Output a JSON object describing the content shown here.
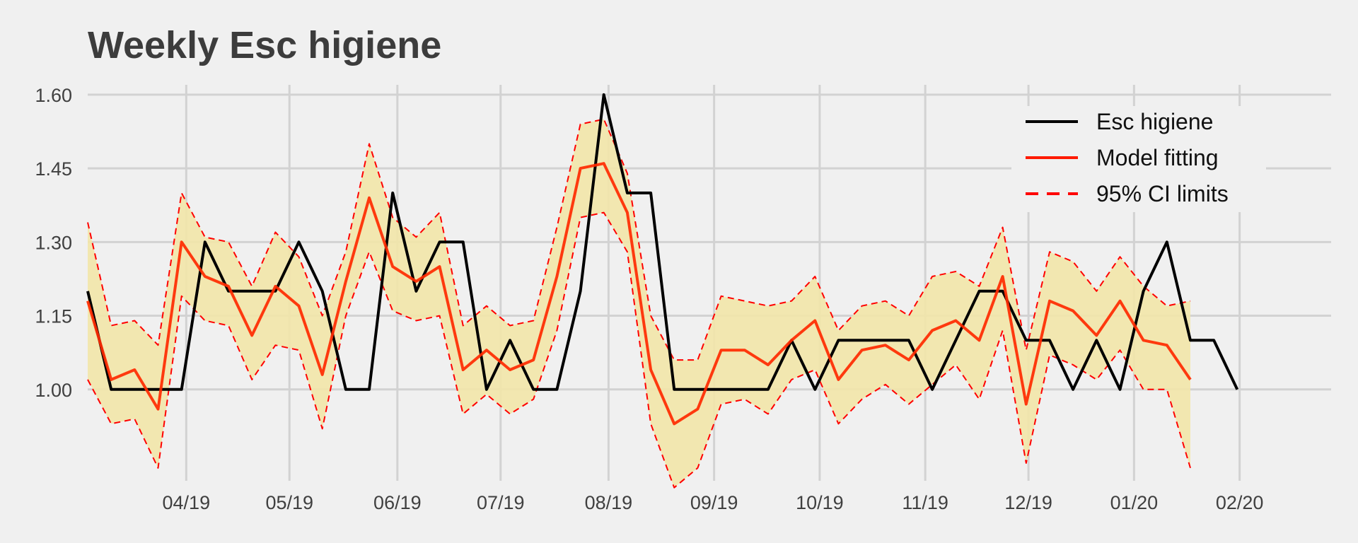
{
  "chart_data": {
    "type": "line",
    "title": "Weekly Esc higiene",
    "xlabel": "",
    "ylabel": "",
    "ylim": [
      0.85,
      1.62
    ],
    "yticks": [
      1.0,
      1.15,
      1.3,
      1.45,
      1.6
    ],
    "ytick_labels": [
      "1.00",
      "1.15",
      "1.30",
      "1.45",
      "1.60"
    ],
    "x_tick_labels": [
      "04/19",
      "05/19",
      "06/19",
      "07/19",
      "08/19",
      "09/19",
      "10/19",
      "11/19",
      "12/19",
      "01/20",
      "02/20"
    ],
    "x_tick_weeks": [
      4.2,
      8.6,
      13.2,
      17.6,
      22.2,
      26.7,
      31.2,
      35.7,
      40.1,
      44.6,
      49.1
    ],
    "x_count": 54,
    "legend": {
      "position": "top-right",
      "entries": [
        "Esc higiene",
        "Model fitting",
        "95% CI limits"
      ]
    },
    "colors": {
      "observed": "#000000",
      "fit": "#ff2a00",
      "ci": "#ff0000",
      "band": "#f2e6a8",
      "grid": "#d2d2d2",
      "background": "#f0f0f0"
    },
    "series": [
      {
        "name": "Esc higiene",
        "style": "solid",
        "values": [
          1.2,
          1.0,
          1.0,
          1.0,
          1.0,
          1.3,
          1.2,
          1.2,
          1.2,
          1.3,
          1.2,
          1.0,
          1.0,
          1.4,
          1.2,
          1.3,
          1.3,
          1.0,
          1.1,
          1.0,
          1.0,
          1.2,
          1.6,
          1.4,
          1.4,
          1.0,
          1.0,
          1.0,
          1.0,
          1.0,
          1.1,
          1.0,
          1.1,
          1.1,
          1.1,
          1.1,
          1.0,
          1.1,
          1.2,
          1.2,
          1.1,
          1.1,
          1.0,
          1.1,
          1.0,
          1.2,
          1.3,
          1.1,
          1.1,
          1.0
        ]
      },
      {
        "name": "Model fitting",
        "style": "solid",
        "values": [
          1.18,
          1.02,
          1.04,
          0.96,
          1.3,
          1.23,
          1.21,
          1.11,
          1.21,
          1.17,
          1.03,
          1.22,
          1.39,
          1.25,
          1.22,
          1.25,
          1.04,
          1.08,
          1.04,
          1.06,
          1.23,
          1.45,
          1.46,
          1.36,
          1.04,
          0.93,
          0.96,
          1.08,
          1.08,
          1.05,
          1.1,
          1.14,
          1.02,
          1.08,
          1.09,
          1.06,
          1.12,
          1.14,
          1.1,
          1.23,
          0.97,
          1.18,
          1.16,
          1.11,
          1.18,
          1.1,
          1.09,
          1.02
        ]
      },
      {
        "name": "95% CI limits",
        "style": "dashed",
        "upper": [
          1.34,
          1.13,
          1.14,
          1.09,
          1.4,
          1.31,
          1.3,
          1.21,
          1.32,
          1.27,
          1.15,
          1.28,
          1.5,
          1.35,
          1.31,
          1.36,
          1.13,
          1.17,
          1.13,
          1.14,
          1.33,
          1.54,
          1.55,
          1.44,
          1.15,
          1.06,
          1.06,
          1.19,
          1.18,
          1.17,
          1.18,
          1.23,
          1.12,
          1.17,
          1.18,
          1.15,
          1.23,
          1.24,
          1.21,
          1.33,
          1.08,
          1.28,
          1.26,
          1.2,
          1.27,
          1.21,
          1.17,
          1.18
        ],
        "lower": [
          1.02,
          0.93,
          0.94,
          0.84,
          1.19,
          1.14,
          1.13,
          1.02,
          1.09,
          1.08,
          0.92,
          1.15,
          1.28,
          1.16,
          1.14,
          1.15,
          0.95,
          0.99,
          0.95,
          0.98,
          1.12,
          1.35,
          1.36,
          1.28,
          0.93,
          0.8,
          0.84,
          0.97,
          0.98,
          0.95,
          1.02,
          1.04,
          0.93,
          0.98,
          1.01,
          0.97,
          1.01,
          1.05,
          0.98,
          1.12,
          0.85,
          1.07,
          1.05,
          1.02,
          1.08,
          1.0,
          1.0,
          0.84
        ]
      }
    ]
  }
}
